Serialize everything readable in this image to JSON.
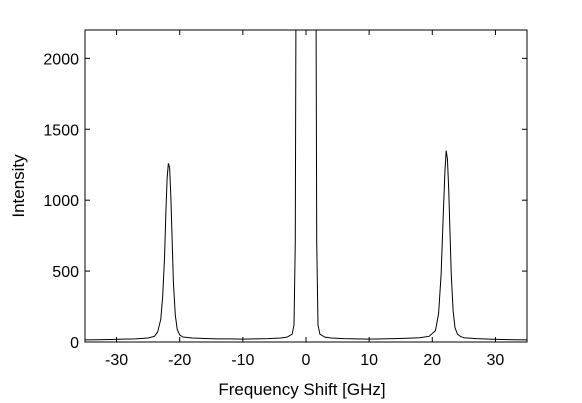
{
  "chart_data": {
    "type": "line",
    "title": "",
    "xlabel": "Frequency Shift [GHz]",
    "ylabel": "Intensity",
    "xlim": [
      -35,
      35
    ],
    "ylim": [
      0,
      2200
    ],
    "xticks": [
      -30,
      -20,
      -10,
      0,
      10,
      20,
      30
    ],
    "xtick_labels": [
      "-30",
      "-20",
      "-10",
      "0",
      "10",
      "20",
      "30"
    ],
    "yticks": [
      0,
      500,
      1000,
      1500,
      2000
    ],
    "ytick_labels": [
      "0",
      "500",
      "1000",
      "1500",
      "2000"
    ],
    "grid": false,
    "legend": "none",
    "line_color": "#000000",
    "series": [
      {
        "x": [
          -35,
          -33,
          -31,
          -29,
          -27,
          -25,
          -24,
          -23.5,
          -23,
          -22.7,
          -22.4,
          -22.2,
          -22.0,
          -21.8,
          -21.6,
          -21.4,
          -21.2,
          -21.0,
          -20.7,
          -20.4,
          -20.0,
          -19.5,
          -18,
          -16,
          -14,
          -12,
          -10,
          -8,
          -6,
          -4,
          -3,
          -2.2,
          -1.9,
          -1.7,
          -1.6,
          -1.5,
          -1.2,
          1.2,
          1.5,
          1.6,
          1.7,
          1.9,
          2.2,
          3,
          4,
          6,
          8,
          10,
          12,
          14,
          16,
          18,
          19.5,
          20.5,
          21.0,
          21.4,
          21.7,
          22.0,
          22.2,
          22.4,
          22.6,
          22.8,
          23.0,
          23.3,
          23.6,
          24.0,
          24.5,
          25,
          27,
          29,
          31,
          33,
          35
        ],
        "y": [
          15,
          16,
          18,
          20,
          22,
          28,
          40,
          70,
          160,
          320,
          600,
          900,
          1150,
          1260,
          1230,
          1020,
          720,
          420,
          190,
          90,
          50,
          35,
          28,
          25,
          22,
          22,
          20,
          22,
          24,
          28,
          34,
          55,
          120,
          700,
          2200,
          2200,
          2200,
          2200,
          2200,
          2200,
          700,
          120,
          55,
          34,
          28,
          24,
          22,
          20,
          22,
          24,
          26,
          30,
          40,
          80,
          200,
          480,
          850,
          1200,
          1350,
          1290,
          1080,
          780,
          480,
          220,
          100,
          55,
          38,
          30,
          24,
          20,
          18,
          16,
          15
        ]
      }
    ]
  }
}
